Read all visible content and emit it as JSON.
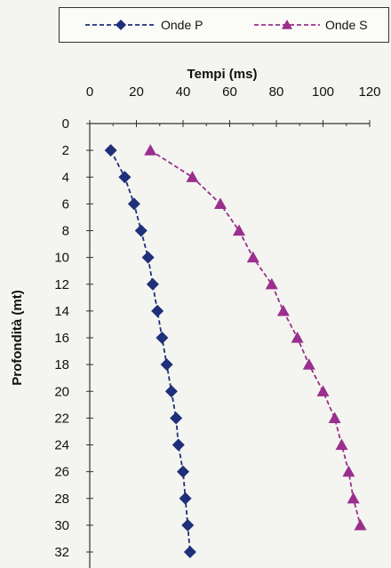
{
  "chart_data": {
    "type": "line",
    "title": "",
    "xlabel": "Tempi (ms)",
    "ylabel": "Profondità (mt)",
    "xlim": [
      0,
      120
    ],
    "ylim": [
      0,
      32
    ],
    "x_ticks": [
      "0",
      "20",
      "40",
      "60",
      "80",
      "100",
      "120"
    ],
    "y_ticks": [
      "0",
      "2",
      "4",
      "6",
      "8",
      "10",
      "12",
      "14",
      "16",
      "18",
      "20",
      "22",
      "24",
      "26",
      "28",
      "30",
      "32"
    ],
    "y_reversed": true,
    "x_axis_position": "top",
    "legend_position": "top",
    "series": [
      {
        "name": "Onde P",
        "color": "#1f2f7a",
        "marker": "diamond",
        "line": "dashed",
        "points": [
          {
            "x": 9,
            "y": 2
          },
          {
            "x": 15,
            "y": 4
          },
          {
            "x": 19,
            "y": 6
          },
          {
            "x": 22,
            "y": 8
          },
          {
            "x": 25,
            "y": 10
          },
          {
            "x": 27,
            "y": 12
          },
          {
            "x": 29,
            "y": 14
          },
          {
            "x": 31,
            "y": 16
          },
          {
            "x": 33,
            "y": 18
          },
          {
            "x": 35,
            "y": 20
          },
          {
            "x": 37,
            "y": 22
          },
          {
            "x": 38,
            "y": 24
          },
          {
            "x": 40,
            "y": 26
          },
          {
            "x": 41,
            "y": 28
          },
          {
            "x": 42,
            "y": 30
          },
          {
            "x": 43,
            "y": 32
          }
        ]
      },
      {
        "name": "Onde S",
        "color": "#9a2f8e",
        "marker": "triangle",
        "line": "dashed",
        "points": [
          {
            "x": 26,
            "y": 2
          },
          {
            "x": 44,
            "y": 4
          },
          {
            "x": 56,
            "y": 6
          },
          {
            "x": 64,
            "y": 8
          },
          {
            "x": 70,
            "y": 10
          },
          {
            "x": 78,
            "y": 12
          },
          {
            "x": 83,
            "y": 14
          },
          {
            "x": 89,
            "y": 16
          },
          {
            "x": 94,
            "y": 18
          },
          {
            "x": 100,
            "y": 20
          },
          {
            "x": 105,
            "y": 22
          },
          {
            "x": 108,
            "y": 24
          },
          {
            "x": 111,
            "y": 26
          },
          {
            "x": 113,
            "y": 28
          },
          {
            "x": 116,
            "y": 30
          }
        ]
      }
    ]
  }
}
